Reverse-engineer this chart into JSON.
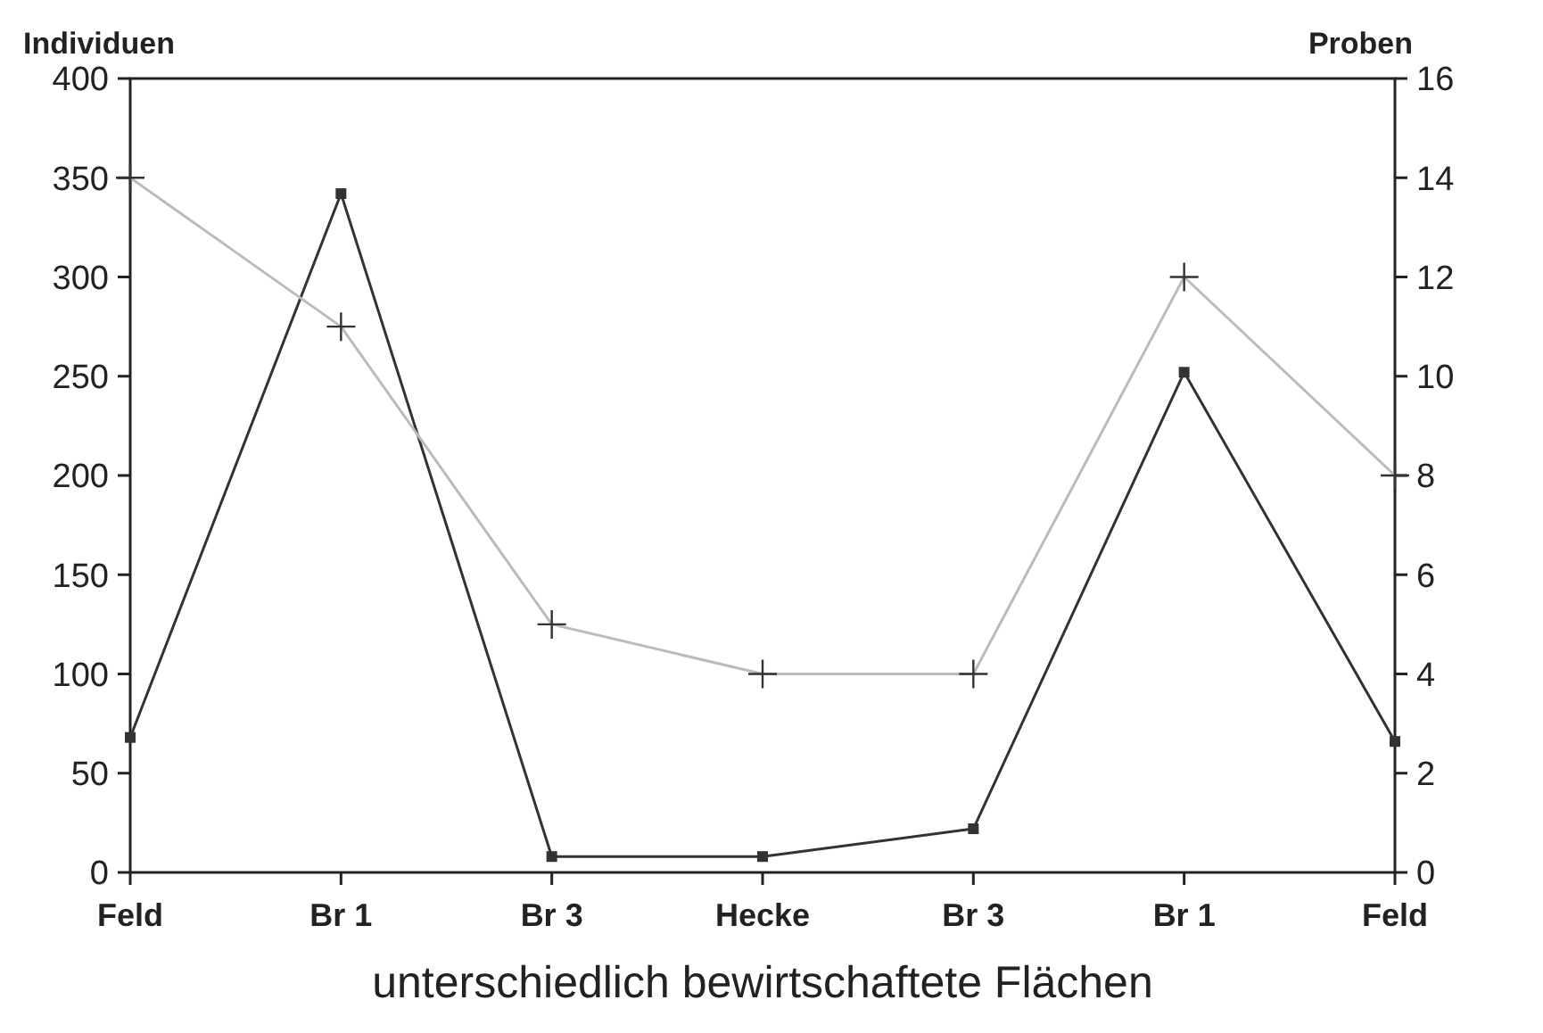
{
  "chart_data": {
    "type": "line",
    "xlabel": "unterschiedlich bewirtschaftete Flächen",
    "ylabel": "Individuen",
    "y2label": "Proben",
    "categories": [
      "Feld",
      "Br 1",
      "Br 3",
      "Hecke",
      "Br 3",
      "Br 1",
      "Feld"
    ],
    "series": [
      {
        "color": "#333333",
        "values": [
          68,
          342,
          8,
          8,
          22,
          252,
          66
        ],
        "marker": "square"
      },
      {
        "color": "#bbbbbb",
        "values": [
          14,
          11,
          5,
          4,
          4,
          12,
          8
        ],
        "axis": "y2",
        "marker": "cross"
      }
    ],
    "ylim": [
      0,
      400
    ],
    "yticks": [
      0,
      50,
      100,
      150,
      200,
      250,
      300,
      350,
      400
    ],
    "y2lim": [
      0,
      16
    ],
    "y2ticks": [
      0,
      2,
      4,
      6,
      8,
      10,
      12,
      14,
      16
    ],
    "grid": false
  }
}
